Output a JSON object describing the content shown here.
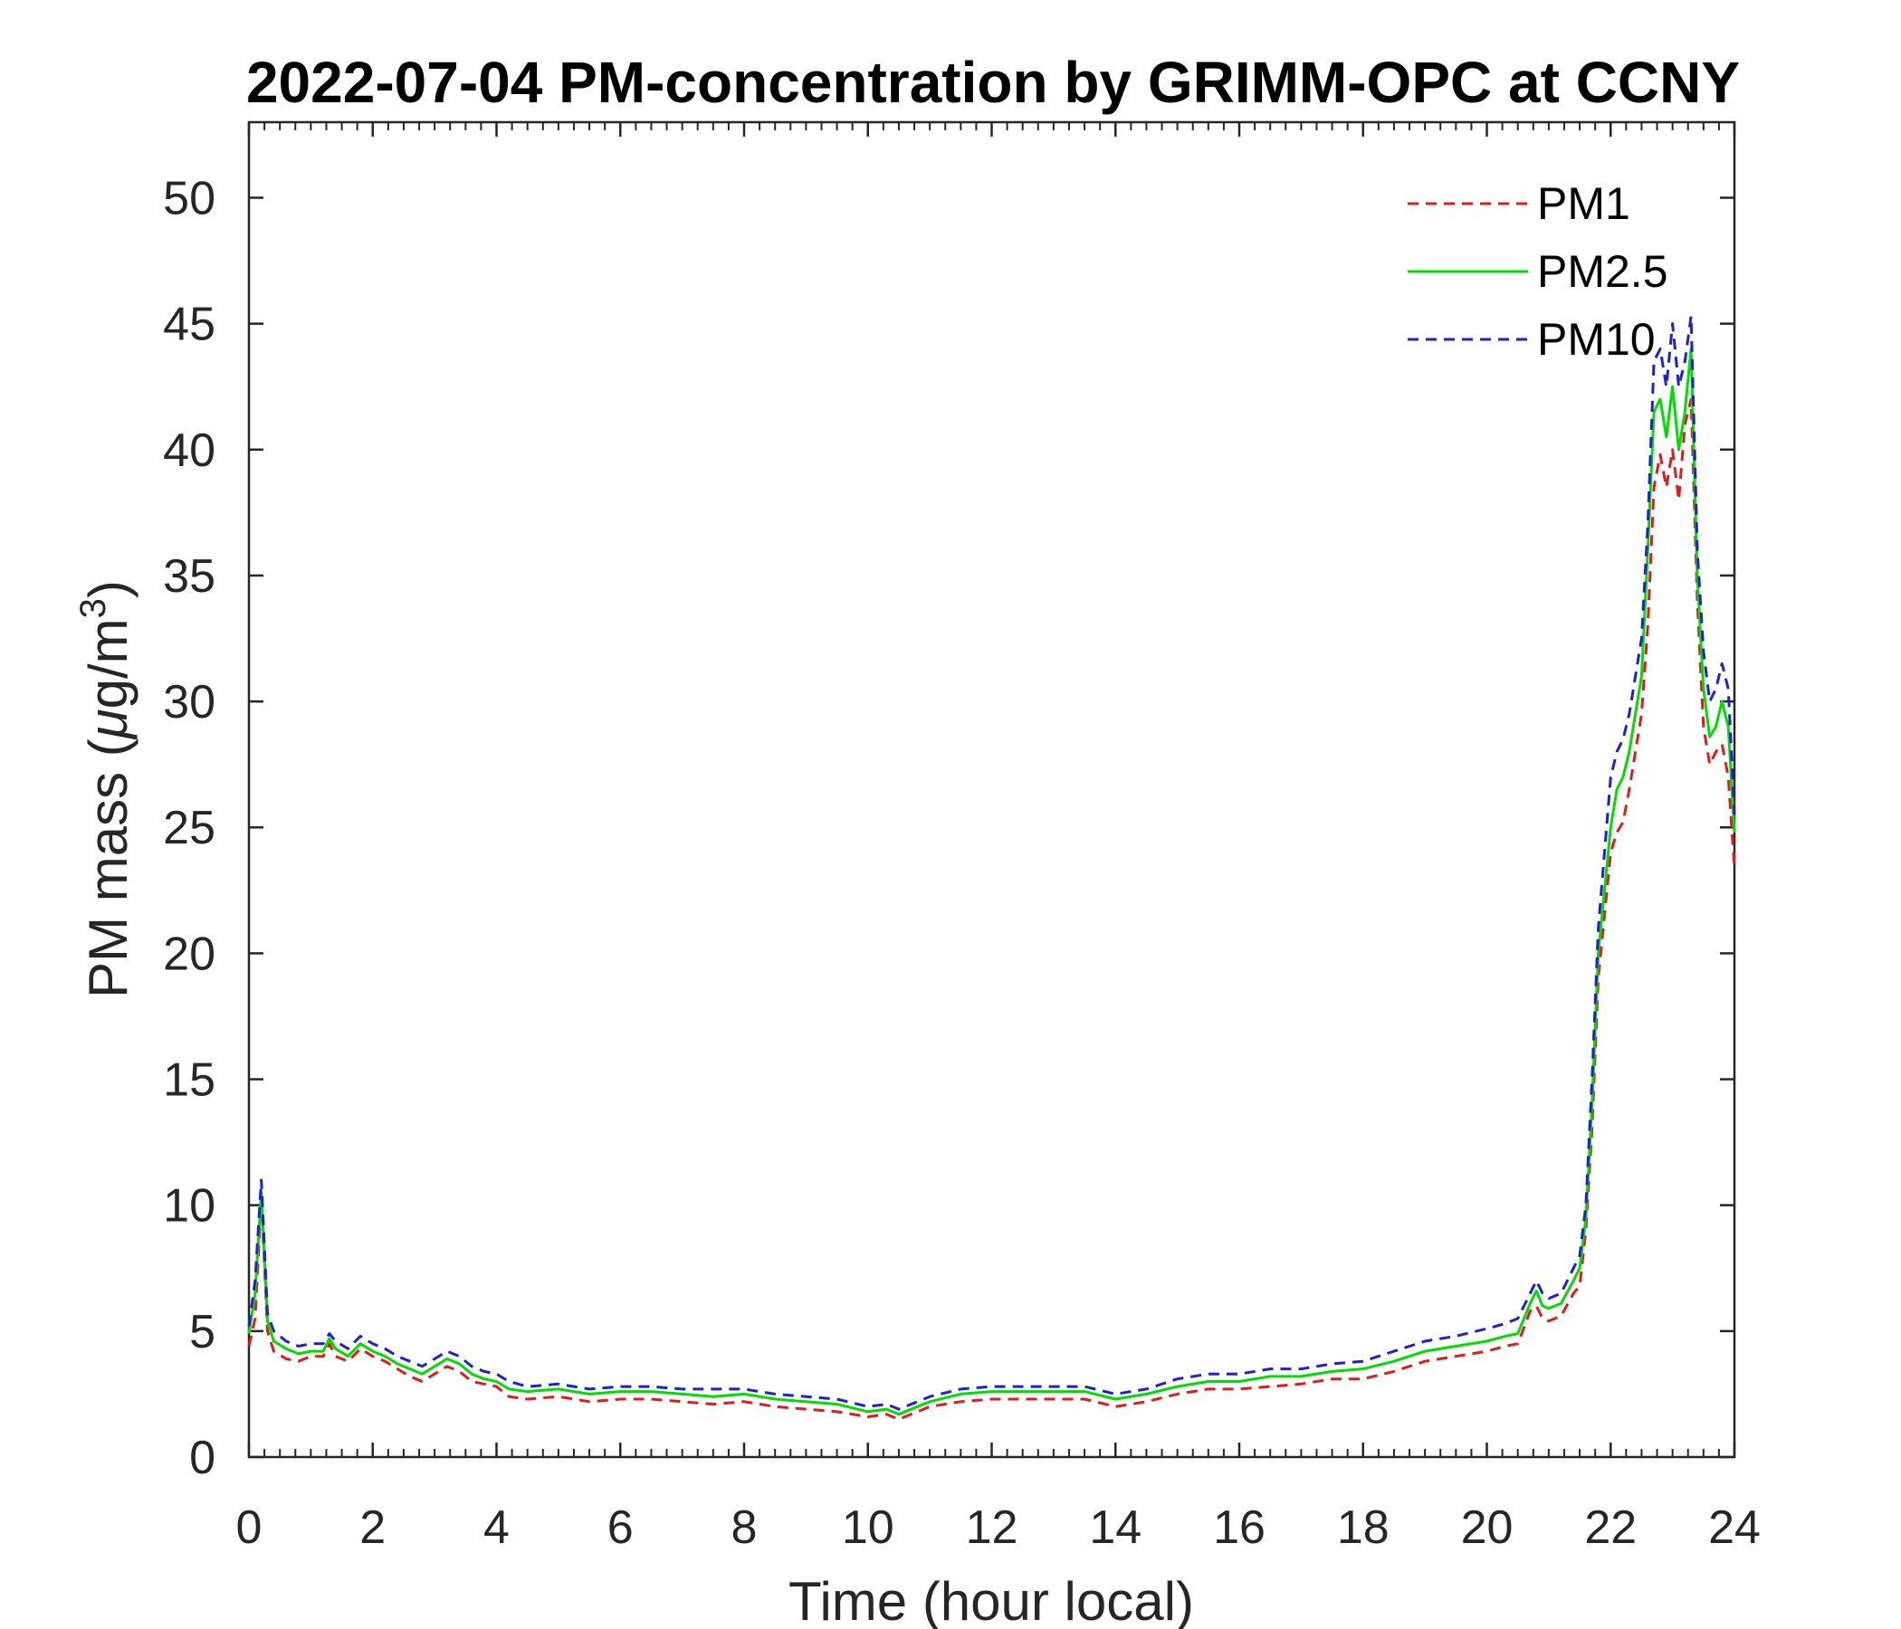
{
  "chart_data": {
    "type": "line",
    "title": "2022-07-04 PM-concentration by GRIMM-OPC at CCNY",
    "xlabel": "Time (hour local)",
    "ylabel": "PM mass (μg/m³)",
    "ylabel_parts": {
      "before": "PM mass (",
      "mu": "μ",
      "unit": "g/m",
      "superscript": "3",
      "after": ")"
    },
    "xlim": [
      0,
      24
    ],
    "ylim": [
      0,
      53
    ],
    "x_ticks": [
      0,
      2,
      4,
      6,
      8,
      10,
      12,
      14,
      16,
      18,
      20,
      22,
      24
    ],
    "y_ticks": [
      0,
      5,
      10,
      15,
      20,
      25,
      30,
      35,
      40,
      45,
      50
    ],
    "grid": false,
    "legend_position": "top-right",
    "x": [
      0,
      0.1,
      0.2,
      0.3,
      0.4,
      0.6,
      0.8,
      1.0,
      1.2,
      1.3,
      1.4,
      1.6,
      1.8,
      2.0,
      2.2,
      2.4,
      2.6,
      2.8,
      3.0,
      3.2,
      3.4,
      3.6,
      3.8,
      4.0,
      4.2,
      4.5,
      5.0,
      5.5,
      6.0,
      6.5,
      7.0,
      7.5,
      8.0,
      8.5,
      9.0,
      9.5,
      10.0,
      10.3,
      10.5,
      10.8,
      11.0,
      11.5,
      12.0,
      12.5,
      13.0,
      13.5,
      14.0,
      14.5,
      15.0,
      15.5,
      16.0,
      16.5,
      17.0,
      17.5,
      18.0,
      18.5,
      19.0,
      19.5,
      20.0,
      20.3,
      20.5,
      20.7,
      20.8,
      20.9,
      21.0,
      21.2,
      21.4,
      21.5,
      21.6,
      21.7,
      21.8,
      22.0,
      22.1,
      22.2,
      22.3,
      22.4,
      22.5,
      22.6,
      22.7,
      22.8,
      22.9,
      23.0,
      23.1,
      23.2,
      23.3,
      23.4,
      23.5,
      23.6,
      23.7,
      23.8,
      23.9,
      24.0
    ],
    "series": [
      {
        "name": "PM1",
        "color": "#e31a1c",
        "dash": "dashed",
        "values": [
          4.4,
          5.5,
          10.2,
          5.0,
          4.2,
          3.9,
          3.8,
          4.0,
          4.0,
          4.5,
          4.0,
          3.8,
          4.3,
          4.0,
          3.8,
          3.5,
          3.2,
          3.0,
          3.3,
          3.6,
          3.4,
          3.0,
          2.9,
          2.8,
          2.4,
          2.3,
          2.4,
          2.2,
          2.3,
          2.3,
          2.2,
          2.1,
          2.2,
          2.0,
          1.9,
          1.8,
          1.6,
          1.7,
          1.5,
          1.8,
          2.0,
          2.2,
          2.3,
          2.3,
          2.3,
          2.3,
          2.0,
          2.2,
          2.5,
          2.7,
          2.7,
          2.8,
          2.9,
          3.1,
          3.1,
          3.4,
          3.8,
          4.0,
          4.2,
          4.4,
          4.5,
          5.8,
          6.0,
          5.5,
          5.4,
          5.6,
          6.5,
          6.8,
          9.0,
          13.0,
          19.0,
          24.0,
          24.8,
          25.2,
          26.5,
          28.0,
          29.5,
          33.0,
          38.5,
          39.8,
          38.5,
          40.0,
          38.0,
          41.0,
          42.0,
          34.0,
          29.0,
          27.5,
          28.0,
          28.3,
          27.0,
          23.4
        ]
      },
      {
        "name": "PM2.5",
        "color": "#00dd00",
        "dash": "solid",
        "values": [
          4.9,
          6.5,
          10.5,
          5.4,
          4.6,
          4.3,
          4.1,
          4.2,
          4.2,
          4.7,
          4.3,
          4.0,
          4.5,
          4.2,
          4.0,
          3.7,
          3.5,
          3.3,
          3.6,
          3.9,
          3.7,
          3.3,
          3.1,
          3.0,
          2.7,
          2.6,
          2.7,
          2.5,
          2.6,
          2.6,
          2.5,
          2.4,
          2.5,
          2.3,
          2.2,
          2.1,
          1.8,
          1.9,
          1.7,
          2.0,
          2.2,
          2.5,
          2.6,
          2.6,
          2.6,
          2.6,
          2.3,
          2.5,
          2.8,
          3.0,
          3.0,
          3.2,
          3.2,
          3.4,
          3.5,
          3.8,
          4.2,
          4.4,
          4.6,
          4.8,
          4.9,
          6.1,
          6.6,
          6.0,
          5.9,
          6.1,
          7.0,
          7.5,
          9.5,
          14.0,
          20.0,
          25.0,
          26.5,
          27.0,
          28.0,
          29.5,
          31.0,
          36.0,
          41.5,
          42.0,
          40.5,
          42.5,
          40.0,
          41.5,
          44.0,
          35.0,
          30.5,
          28.6,
          29.0,
          30.0,
          29.0,
          24.8
        ]
      },
      {
        "name": "PM10",
        "color": "#1f1fd6",
        "dash": "dashed",
        "values": [
          5.2,
          7.0,
          11.0,
          5.7,
          5.0,
          4.6,
          4.4,
          4.5,
          4.5,
          4.9,
          4.6,
          4.3,
          4.8,
          4.5,
          4.3,
          4.0,
          3.8,
          3.6,
          3.9,
          4.2,
          4.0,
          3.6,
          3.4,
          3.3,
          3.0,
          2.8,
          2.9,
          2.7,
          2.8,
          2.8,
          2.7,
          2.7,
          2.7,
          2.5,
          2.4,
          2.3,
          2.0,
          2.1,
          1.9,
          2.2,
          2.4,
          2.7,
          2.8,
          2.8,
          2.8,
          2.8,
          2.5,
          2.7,
          3.1,
          3.3,
          3.3,
          3.5,
          3.5,
          3.7,
          3.8,
          4.2,
          4.6,
          4.8,
          5.1,
          5.3,
          5.5,
          6.5,
          7.0,
          6.5,
          6.3,
          6.5,
          7.5,
          8.0,
          10.0,
          15.0,
          21.0,
          27.0,
          28.0,
          28.5,
          29.5,
          31.0,
          32.5,
          37.0,
          43.5,
          44.0,
          42.5,
          45.0,
          42.5,
          43.5,
          45.3,
          36.0,
          32.0,
          30.0,
          30.5,
          31.5,
          30.5,
          25.5
        ]
      }
    ]
  }
}
